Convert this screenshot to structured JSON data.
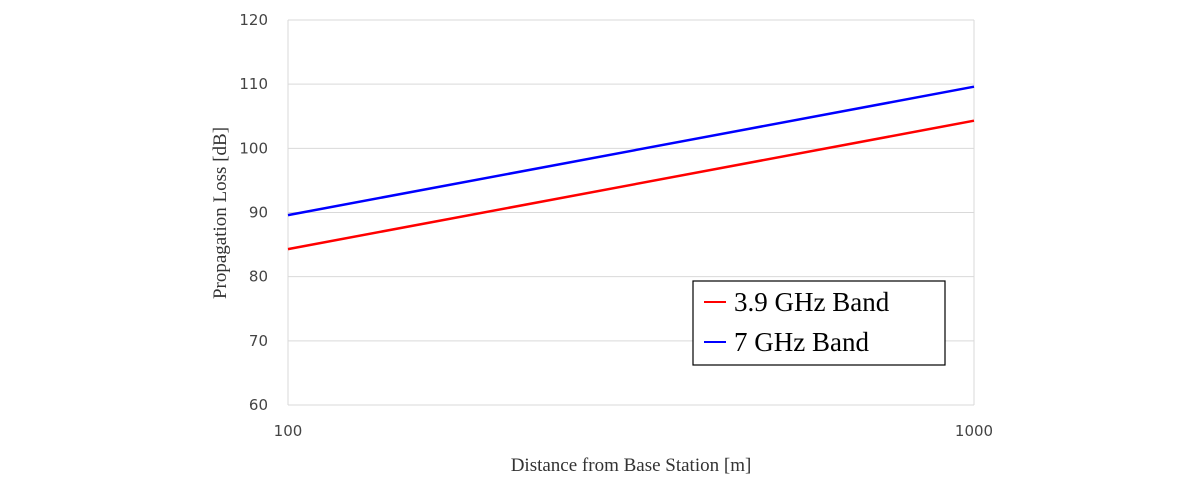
{
  "chart_data": {
    "type": "line",
    "title": "",
    "xlabel": "Distance from Base Station [m]",
    "ylabel": "Propagation Loss [dB]",
    "x_scale": "log",
    "xlim": [
      100,
      1000
    ],
    "ylim": [
      60,
      120
    ],
    "x_ticks": [
      100,
      1000
    ],
    "y_ticks": [
      60,
      70,
      80,
      90,
      100,
      110,
      120
    ],
    "grid": "horizontal",
    "legend_position": "bottom-right",
    "series": [
      {
        "name": "3.9 GHz Band",
        "color": "#ff0000",
        "x": [
          100,
          1000
        ],
        "y": [
          84.3,
          104.3
        ]
      },
      {
        "name": "7 GHz Band",
        "color": "#0000ff",
        "x": [
          100,
          1000
        ],
        "y": [
          89.6,
          109.6
        ]
      }
    ]
  }
}
